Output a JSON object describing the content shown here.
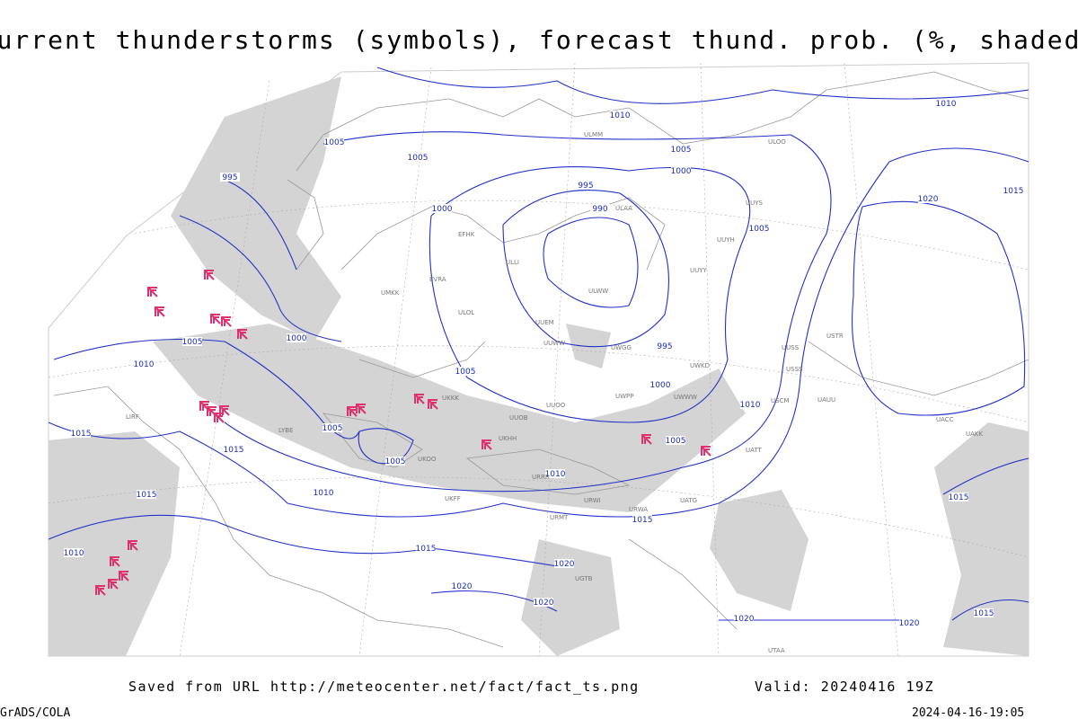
{
  "header": {
    "title": "Current thunderstorms (symbols), forecast thund. prob. (%, shaded)"
  },
  "footer": {
    "source": "Saved from URL http://meteocenter.net/fact/fact_ts.png",
    "valid": "Valid: 20240416 19Z",
    "credit": "GrADS/COLA",
    "timestamp": "2024-04-16-19:05"
  },
  "isobar_labels": [
    "1010",
    "1005",
    "1000",
    "995",
    "990",
    "1000",
    "1005",
    "1005",
    "995",
    "1005",
    "1010",
    "1015",
    "1020",
    "1000",
    "1005",
    "1010",
    "995",
    "1000",
    "1010",
    "1005",
    "1015",
    "1015",
    "1005",
    "1005",
    "1010",
    "1010",
    "1005",
    "1015",
    "1015",
    "1015",
    "1010",
    "1020",
    "1020",
    "1020",
    "1020",
    "1020",
    "1015",
    "1015"
  ],
  "stations": [
    "ULMM",
    "ULOO",
    "ULAA",
    "ULLI",
    "EFHK",
    "ULOL",
    "EVRA",
    "UMKK",
    "ULWW",
    "UUEM",
    "UUWW",
    "UWGG",
    "UUYY",
    "UUYH",
    "UUYS",
    "UUSS",
    "USSS",
    "USCM",
    "UAUU",
    "USTR",
    "UACC",
    "UAKK",
    "UWWW",
    "UWPP",
    "UWKD",
    "UUOO",
    "UUOB",
    "UKKK",
    "UKHH",
    "UKOO",
    "UKFF",
    "URRR",
    "URWI",
    "URWA",
    "UATG",
    "URMT",
    "UGTB",
    "UTAA",
    "UATT",
    "LIRF",
    "LYBE"
  ]
}
